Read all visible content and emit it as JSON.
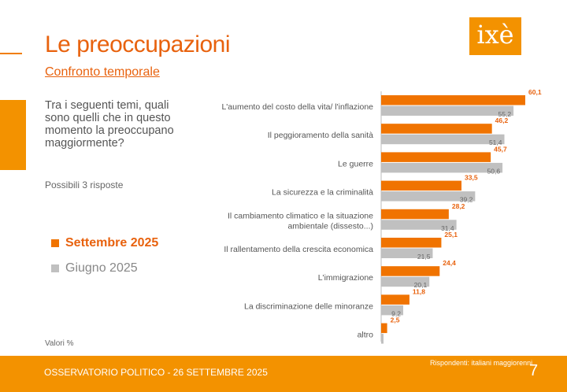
{
  "header": {
    "title": "Le preoccupazioni",
    "subtitle": "Confronto temporale",
    "logo_text": "ixè"
  },
  "question": "Tra i seguenti temi, quali sono quelli che in questo momento la preoccupano maggiormente?",
  "note": "Possibili 3 risposte",
  "values_note": "Valori %",
  "footer": {
    "left": "OSSERVATORIO POLITICO - 26 SETTEMBRE 2025",
    "respondents": "Rispondenti: italiani maggiorenni",
    "page": "7"
  },
  "colors": {
    "accent": "#f39200",
    "series1": "#f07300",
    "series2": "#c0c0c0"
  },
  "chart_data": {
    "type": "bar",
    "orientation": "horizontal",
    "categories": [
      "L'aumento del costo della vita/ l'inflazione",
      "Il peggioramento della sanità",
      "Le guerre",
      "La sicurezza e la criminalità",
      "Il cambiamento climatico e la situazione ambientale (dissesto...)",
      "Il rallentamento della crescita economica",
      "L'immigrazione",
      "La discriminazione delle minoranze",
      "altro"
    ],
    "category_lines": [
      [
        "L'aumento del costo della vita/ l'inflazione"
      ],
      [
        "Il peggioramento della sanità"
      ],
      [
        "Le guerre"
      ],
      [
        "La sicurezza e la criminalità"
      ],
      [
        "Il cambiamento climatico e la situazione",
        "ambientale (dissesto...)"
      ],
      [
        "Il rallentamento della crescita economica"
      ],
      [
        "L'immigrazione"
      ],
      [
        "La discriminazione delle minoranze"
      ],
      [
        "altro"
      ]
    ],
    "series": [
      {
        "name": "Settembre 2025",
        "color": "#f07300",
        "values": [
          60.1,
          46.2,
          45.7,
          33.5,
          28.2,
          25.1,
          24.4,
          11.8,
          2.5
        ],
        "labels": [
          "60,1",
          "46,2",
          "45,7",
          "33,5",
          "28,2",
          "25,1",
          "24,4",
          "11,8",
          "2,5"
        ]
      },
      {
        "name": "Giugno 2025",
        "color": "#c0c0c0",
        "values": [
          55.2,
          51.4,
          50.6,
          39.2,
          31.4,
          21.5,
          20.1,
          9.2,
          null
        ],
        "labels": [
          "55,2",
          "51,4",
          "50,6",
          "39,2",
          "31,4",
          "21,5",
          "20,1",
          "9,2",
          ""
        ]
      }
    ],
    "xlim": [
      0,
      65
    ],
    "legend_position": "left"
  }
}
